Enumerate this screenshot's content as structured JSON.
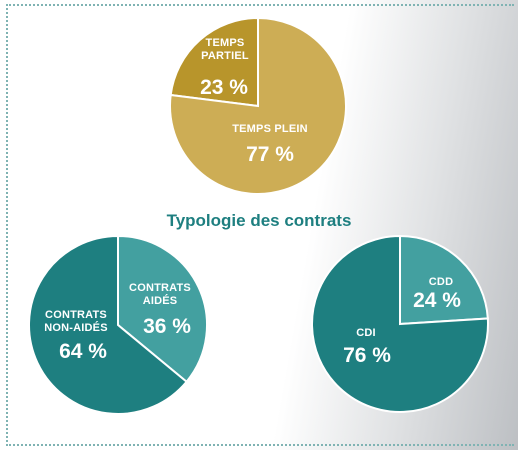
{
  "title": "Typologie des contrats",
  "colors": {
    "gold_dark": "#b8952b",
    "gold": "#cdad55",
    "teal_dark": "#1e7f80",
    "teal_light": "#43a0a0",
    "title": "#1e7f80"
  },
  "chart_data": [
    {
      "type": "pie",
      "slices": [
        {
          "label_lines": [
            "TEMPS",
            "PARTIEL"
          ],
          "value": 23,
          "value_label": "23 %",
          "color": "#b8952b"
        },
        {
          "label_lines": [
            "TEMPS PLEIN"
          ],
          "value": 77,
          "value_label": "77 %",
          "color": "#cdad55"
        }
      ]
    },
    {
      "type": "pie",
      "slices": [
        {
          "label_lines": [
            "CONTRATS",
            "AIDÉS"
          ],
          "value": 36,
          "value_label": "36 %",
          "color": "#43a0a0"
        },
        {
          "label_lines": [
            "CONTRATS",
            "NON-AIDÉS"
          ],
          "value": 64,
          "value_label": "64 %",
          "color": "#1e7f80"
        }
      ]
    },
    {
      "type": "pie",
      "slices": [
        {
          "label_lines": [
            "CDD"
          ],
          "value": 24,
          "value_label": "24 %",
          "color": "#43a0a0"
        },
        {
          "label_lines": [
            "CDI"
          ],
          "value": 76,
          "value_label": "76 %",
          "color": "#1e7f80"
        }
      ]
    }
  ]
}
